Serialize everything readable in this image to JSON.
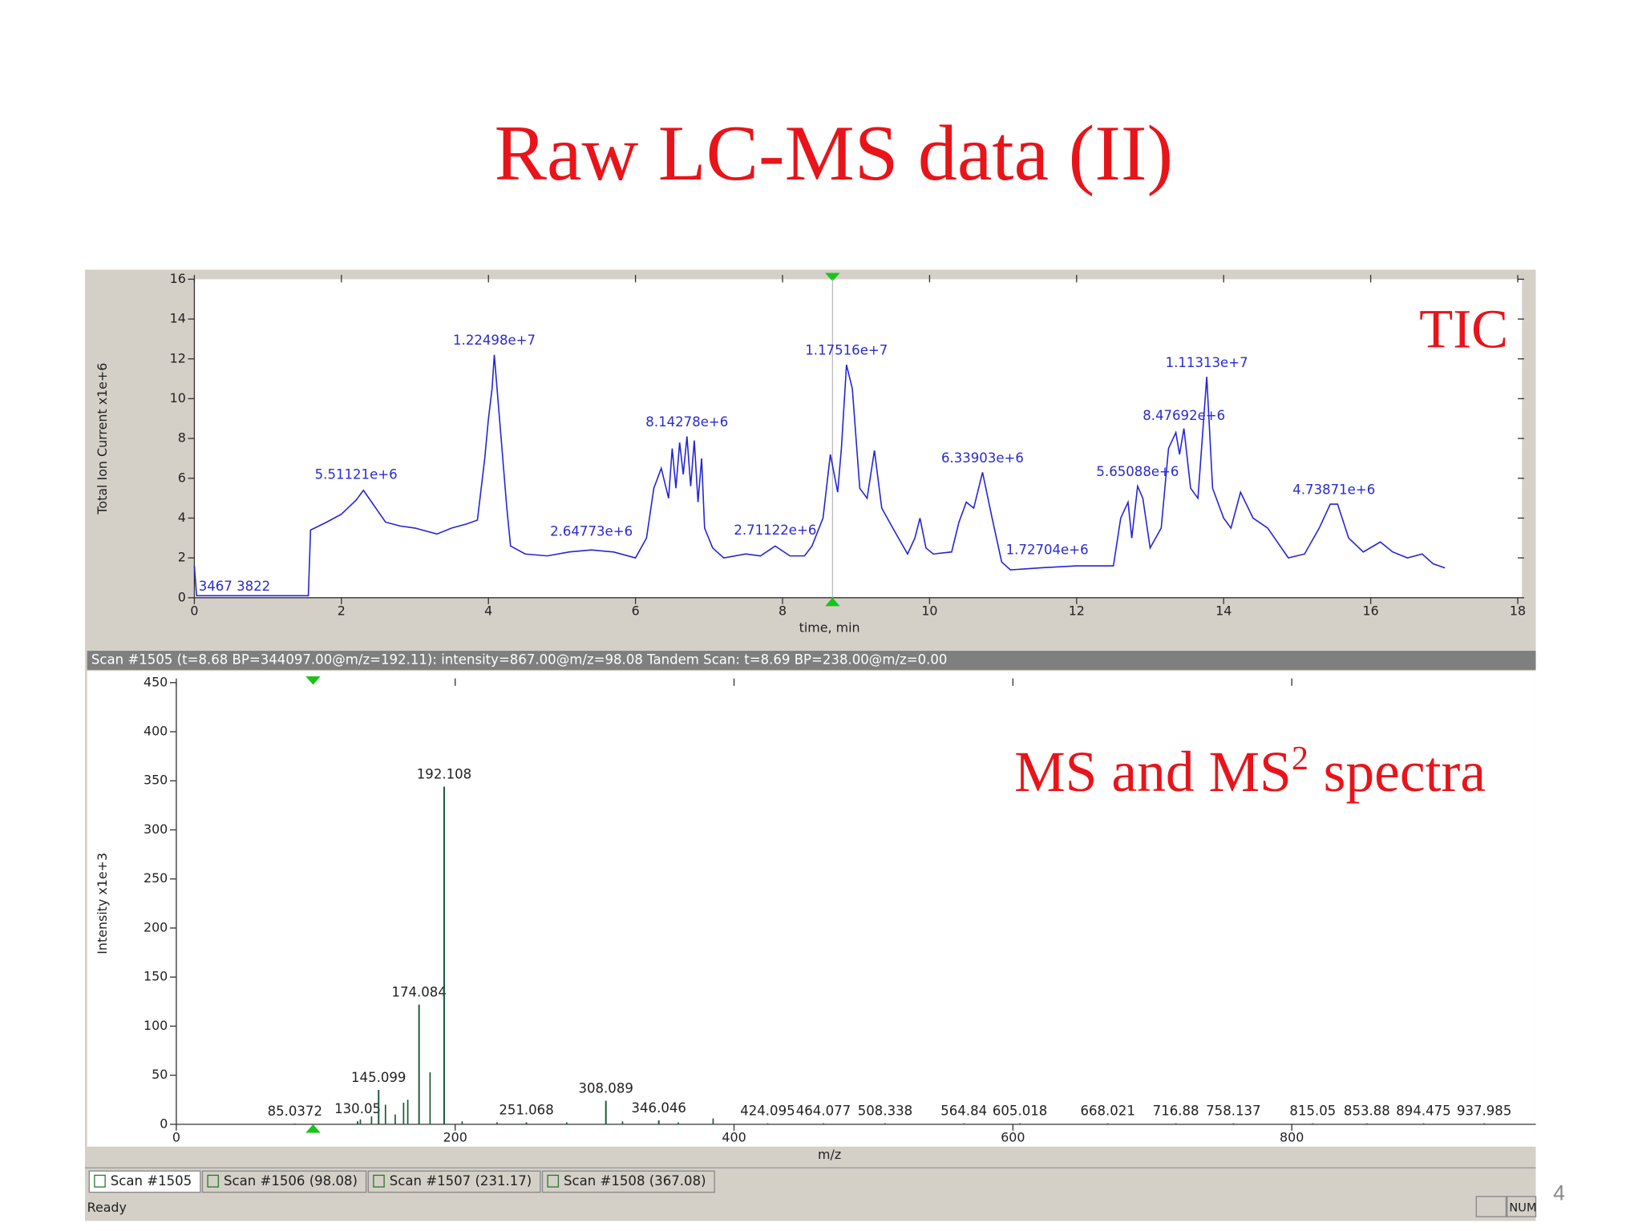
{
  "title": "Raw LC-MS data (II)",
  "page_number": 4,
  "status_bar": "Scan #1505 (t=8.68 BP=344097.00@m/z=192.11): intensity=867.00@m/z=98.08 Tandem Scan: t=8.69 BP=238.00@m/z=0.00",
  "tabs": [
    "Scan #1505",
    "Scan #1506 (98.08)",
    "Scan #1507 (231.17)",
    "Scan #1508 (367.08)"
  ],
  "status": "Ready",
  "indicator": "NUM",
  "chart_data": [
    {
      "type": "line",
      "label": "TIC",
      "xlabel": "time, min",
      "ylabel": "Total Ion Current x1e+6",
      "corner_label": "3467 3822",
      "xlim": [
        0,
        18
      ],
      "ylim": [
        0,
        16
      ],
      "xticks": [
        0,
        2,
        4,
        6,
        8,
        10,
        12,
        14,
        16,
        18
      ],
      "yticks": [
        0,
        2,
        4,
        6,
        8,
        10,
        12,
        14,
        16
      ],
      "cursor": 8.68,
      "x": [
        0,
        0.03,
        1.55,
        1.58,
        1.8,
        2.0,
        2.2,
        2.3,
        2.45,
        2.6,
        2.8,
        3.0,
        3.3,
        3.5,
        3.7,
        3.85,
        3.95,
        4.0,
        4.05,
        4.08,
        4.15,
        4.25,
        4.3,
        4.5,
        4.8,
        5.1,
        5.4,
        5.7,
        6.0,
        6.15,
        6.25,
        6.35,
        6.45,
        6.5,
        6.55,
        6.6,
        6.65,
        6.7,
        6.75,
        6.8,
        6.85,
        6.9,
        6.94,
        7.05,
        7.2,
        7.5,
        7.7,
        7.9,
        8.1,
        8.3,
        8.4,
        8.55,
        8.65,
        8.75,
        8.8,
        8.87,
        8.95,
        9.05,
        9.15,
        9.25,
        9.35,
        9.5,
        9.7,
        9.8,
        9.87,
        9.95,
        10.05,
        10.3,
        10.4,
        10.5,
        10.6,
        10.72,
        10.85,
        10.98,
        11.1,
        11.5,
        12.0,
        12.5,
        12.6,
        12.7,
        12.75,
        12.83,
        12.9,
        13.0,
        13.15,
        13.25,
        13.35,
        13.4,
        13.46,
        13.55,
        13.65,
        13.77,
        13.85,
        14.0,
        14.1,
        14.23,
        14.4,
        14.6,
        14.88,
        15.1,
        15.3,
        15.45,
        15.55,
        15.7,
        15.9,
        16.13,
        16.3,
        16.5,
        16.7,
        16.85,
        17.01
      ],
      "series": [
        {
          "color": "#2424d8",
          "values": [
            1.6,
            0.1,
            0.1,
            3.4,
            3.8,
            4.2,
            4.9,
            5.4,
            4.6,
            3.8,
            3.6,
            3.5,
            3.2,
            3.5,
            3.7,
            3.9,
            7,
            9,
            10.5,
            12.2,
            9,
            4.5,
            2.6,
            2.2,
            2.1,
            2.3,
            2.4,
            2.3,
            2.0,
            3.0,
            5.5,
            6.5,
            5.0,
            7.5,
            5.5,
            7.8,
            6.2,
            8.1,
            5.6,
            7.9,
            4.8,
            7.0,
            3.5,
            2.5,
            2.0,
            2.2,
            2.1,
            2.6,
            2.1,
            2.1,
            2.6,
            4.0,
            7.2,
            5.3,
            7.5,
            11.7,
            10.5,
            5.5,
            5.0,
            7.4,
            4.5,
            3.5,
            2.2,
            3.0,
            4.0,
            2.5,
            2.2,
            2.3,
            3.8,
            4.8,
            4.5,
            6.3,
            4.0,
            1.8,
            1.4,
            1.5,
            1.6,
            1.6,
            4.0,
            4.8,
            3.0,
            5.6,
            5.0,
            2.5,
            3.5,
            7.5,
            8.3,
            7.2,
            8.5,
            5.5,
            5.0,
            11.1,
            5.5,
            4.0,
            3.5,
            5.3,
            4.0,
            3.5,
            2.0,
            2.2,
            3.5,
            4.7,
            4.7,
            3.0,
            2.3,
            2.8,
            2.3,
            2.0,
            2.2,
            1.7,
            1.5
          ]
        }
      ],
      "annotations": [
        {
          "x": 2.2,
          "value": 5.51121,
          "label": "5.51121e+6"
        },
        {
          "x": 4.08,
          "value": 12.2498,
          "label": "1.22498e+7"
        },
        {
          "x": 5.4,
          "value": 2.64773,
          "label": "2.64773e+6"
        },
        {
          "x": 6.7,
          "value": 8.14278,
          "label": "8.14278e+6"
        },
        {
          "x": 7.9,
          "value": 2.71122,
          "label": "2.71122e+6"
        },
        {
          "x": 8.87,
          "value": 11.7516,
          "label": "1.17516e+7"
        },
        {
          "x": 10.72,
          "value": 6.33903,
          "label": "6.33903e+6"
        },
        {
          "x": 11.6,
          "value": 1.72704,
          "label": "1.72704e+6"
        },
        {
          "x": 12.83,
          "value": 5.65088,
          "label": "5.65088e+6"
        },
        {
          "x": 13.46,
          "value": 8.47692,
          "label": "8.47692e+6"
        },
        {
          "x": 13.77,
          "value": 11.1313,
          "label": "1.11313e+7"
        },
        {
          "x": 15.5,
          "value": 4.73871,
          "label": "4.73871e+6"
        }
      ]
    },
    {
      "type": "stem",
      "label": "MS and MS",
      "label_superscript": "2",
      "label_suffix": "spectra",
      "xlabel": "m/z",
      "ylabel": "Intensity x1e+3",
      "xlim": [
        0,
        975
      ],
      "ylim": [
        0,
        450
      ],
      "xticks": [
        0,
        200,
        400,
        600,
        800
      ],
      "yticks": [
        0,
        50,
        100,
        150,
        200,
        250,
        300,
        350,
        400,
        450
      ],
      "cursor": 98.08,
      "color": "#1d5c3c",
      "x": [
        85.0372,
        130.05,
        145.099,
        174.084,
        192.108,
        251.068,
        308.089,
        346.046,
        424.095,
        464.077,
        508.338,
        564.84,
        605.018,
        668.021,
        716.88,
        758.137,
        815.05,
        853.88,
        894.475,
        937.985
      ],
      "values": [
        0.8,
        3,
        35,
        122,
        344,
        2,
        24,
        4,
        1,
        1,
        1,
        1,
        1,
        1,
        1,
        1,
        1,
        1,
        1,
        1
      ],
      "minor_x": [
        132,
        140,
        150,
        157,
        163,
        166,
        182,
        205,
        230,
        280,
        320,
        360,
        385
      ],
      "minor_values": [
        5,
        8,
        20,
        10,
        22,
        25,
        53,
        3,
        2,
        2,
        3,
        2,
        6
      ]
    }
  ]
}
